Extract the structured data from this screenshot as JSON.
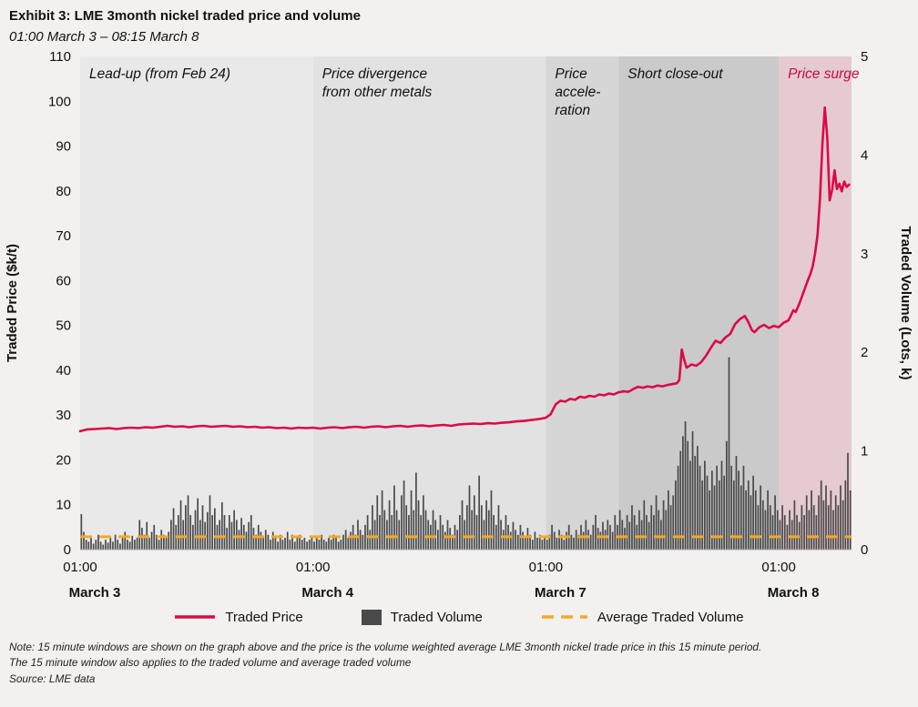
{
  "page": {
    "title": "Exhibit 3: LME 3month nickel traded price and volume",
    "subtitle": "01:00 March 3 – 08:15 March 8"
  },
  "notes": {
    "line1": "Note: 15 minute windows are shown on the graph above and the price is the volume weighted average LME 3month nickel trade price in this 15 minute period.",
    "line2": "The 15 minute window also applies to the traded volume and average traded volume",
    "source": "Source: LME data"
  },
  "legend": [
    {
      "label": "Traded Price",
      "type": "line",
      "color": "#db0a47"
    },
    {
      "label": "Traded Volume",
      "type": "box",
      "color": "#4a4a4a"
    },
    {
      "label": "Average Traded Volume",
      "type": "dashed",
      "color": "#f7a823"
    }
  ],
  "chart_data": {
    "type": "combo: line (price, left axis) + bar (volume, right axis) + dashed average line",
    "x_unit": "15-minute trading windows, 01:00 March 3 to 08:15 March 8 (trading days only)",
    "total_windows": 318,
    "x_tick_windows": [
      0,
      96,
      192,
      288
    ],
    "x_tick_time_labels": [
      "01:00",
      "01:00",
      "01:00",
      "01:00"
    ],
    "x_tick_day_labels": [
      "March 3",
      "March 4",
      "March 7",
      "March 8"
    ],
    "left_axis": {
      "label": "Traded Price ($k/t)",
      "min": 0,
      "max": 110,
      "step": 10
    },
    "right_axis": {
      "label": "Traded Volume (Lots, k)",
      "min": 0,
      "max": 5,
      "step": 1
    },
    "bands": [
      {
        "label": "Lead-up (from Feb 24)",
        "start": 0,
        "end": 96,
        "color": "#e9e9e9",
        "label_color": "#111111"
      },
      {
        "label": "Price divergence\nfrom other metals",
        "start": 96,
        "end": 192,
        "color": "#e2e2e2",
        "label_color": "#111111"
      },
      {
        "label": "Price\naccele-\nration",
        "start": 192,
        "end": 222,
        "color": "#d6d6d6",
        "label_color": "#111111"
      },
      {
        "label": "Short close-out",
        "start": 222,
        "end": 288,
        "color": "#cacaca",
        "label_color": "#111111"
      },
      {
        "label": "Price surge",
        "start": 288,
        "end": 318,
        "color": "#e5cad0",
        "label_color": "#c40b3e"
      }
    ],
    "price_series": {
      "name": "Traded Price",
      "color": "#db0a47",
      "points": [
        [
          0,
          26.4
        ],
        [
          3,
          26.8
        ],
        [
          6,
          26.9
        ],
        [
          9,
          27.0
        ],
        [
          12,
          27.1
        ],
        [
          15,
          26.9
        ],
        [
          18,
          27.1
        ],
        [
          21,
          27.2
        ],
        [
          24,
          27.1
        ],
        [
          27,
          27.3
        ],
        [
          30,
          27.2
        ],
        [
          33,
          27.4
        ],
        [
          36,
          27.6
        ],
        [
          39,
          27.4
        ],
        [
          42,
          27.5
        ],
        [
          45,
          27.3
        ],
        [
          48,
          27.5
        ],
        [
          51,
          27.6
        ],
        [
          54,
          27.4
        ],
        [
          57,
          27.5
        ],
        [
          60,
          27.6
        ],
        [
          63,
          27.4
        ],
        [
          66,
          27.5
        ],
        [
          69,
          27.3
        ],
        [
          72,
          27.4
        ],
        [
          75,
          27.2
        ],
        [
          78,
          27.3
        ],
        [
          81,
          27.1
        ],
        [
          84,
          27.2
        ],
        [
          87,
          27.0
        ],
        [
          90,
          27.2
        ],
        [
          93,
          27.1
        ],
        [
          96,
          27.2
        ],
        [
          99,
          27.0
        ],
        [
          102,
          27.2
        ],
        [
          105,
          27.3
        ],
        [
          108,
          27.1
        ],
        [
          111,
          27.3
        ],
        [
          114,
          27.4
        ],
        [
          117,
          27.2
        ],
        [
          120,
          27.4
        ],
        [
          123,
          27.5
        ],
        [
          126,
          27.3
        ],
        [
          129,
          27.5
        ],
        [
          132,
          27.6
        ],
        [
          135,
          27.4
        ],
        [
          138,
          27.6
        ],
        [
          141,
          27.7
        ],
        [
          144,
          27.5
        ],
        [
          147,
          27.7
        ],
        [
          150,
          27.8
        ],
        [
          153,
          27.6
        ],
        [
          156,
          27.9
        ],
        [
          159,
          28.0
        ],
        [
          162,
          28.1
        ],
        [
          165,
          28.0
        ],
        [
          168,
          28.2
        ],
        [
          171,
          28.1
        ],
        [
          174,
          28.3
        ],
        [
          177,
          28.4
        ],
        [
          180,
          28.6
        ],
        [
          183,
          28.7
        ],
        [
          186,
          28.9
        ],
        [
          189,
          29.1
        ],
        [
          192,
          29.4
        ],
        [
          194,
          30.2
        ],
        [
          196,
          32.4
        ],
        [
          198,
          33.2
        ],
        [
          200,
          33.0
        ],
        [
          202,
          33.6
        ],
        [
          204,
          33.4
        ],
        [
          206,
          34.1
        ],
        [
          208,
          33.9
        ],
        [
          210,
          34.3
        ],
        [
          212,
          34.1
        ],
        [
          214,
          34.6
        ],
        [
          216,
          34.4
        ],
        [
          218,
          34.8
        ],
        [
          220,
          34.6
        ],
        [
          222,
          35.1
        ],
        [
          224,
          35.3
        ],
        [
          226,
          35.2
        ],
        [
          228,
          35.8
        ],
        [
          230,
          36.3
        ],
        [
          232,
          36.1
        ],
        [
          234,
          36.4
        ],
        [
          236,
          36.2
        ],
        [
          238,
          36.6
        ],
        [
          240,
          36.4
        ],
        [
          242,
          36.7
        ],
        [
          244,
          36.9
        ],
        [
          246,
          37.1
        ],
        [
          247,
          37.8
        ],
        [
          248,
          44.6
        ],
        [
          249,
          42.4
        ],
        [
          250,
          40.6
        ],
        [
          251,
          40.9
        ],
        [
          252,
          41.3
        ],
        [
          254,
          41.0
        ],
        [
          256,
          41.8
        ],
        [
          258,
          43.2
        ],
        [
          260,
          45.0
        ],
        [
          262,
          46.6
        ],
        [
          264,
          46.1
        ],
        [
          266,
          47.3
        ],
        [
          268,
          48.1
        ],
        [
          270,
          50.3
        ],
        [
          272,
          51.4
        ],
        [
          274,
          52.1
        ],
        [
          275,
          51.2
        ],
        [
          276,
          50.1
        ],
        [
          277,
          48.9
        ],
        [
          278,
          48.5
        ],
        [
          280,
          49.6
        ],
        [
          282,
          50.1
        ],
        [
          284,
          49.4
        ],
        [
          286,
          49.9
        ],
        [
          288,
          49.6
        ],
        [
          290,
          50.6
        ],
        [
          292,
          51.1
        ],
        [
          293,
          52.2
        ],
        [
          294,
          53.4
        ],
        [
          295,
          53.0
        ],
        [
          296,
          54.2
        ],
        [
          297,
          55.6
        ],
        [
          298,
          57.1
        ],
        [
          299,
          58.6
        ],
        [
          300,
          60.1
        ],
        [
          301,
          61.4
        ],
        [
          302,
          63.2
        ],
        [
          303,
          66.1
        ],
        [
          304,
          70.2
        ],
        [
          305,
          78.4
        ],
        [
          306,
          90.3
        ],
        [
          307,
          98.6
        ],
        [
          308,
          91.8
        ],
        [
          309,
          77.9
        ],
        [
          310,
          80.2
        ],
        [
          311,
          84.6
        ],
        [
          312,
          80.4
        ],
        [
          313,
          81.6
        ],
        [
          314,
          79.9
        ],
        [
          315,
          82.1
        ],
        [
          316,
          80.9
        ],
        [
          317,
          81.4
        ]
      ]
    },
    "volume_series": {
      "name": "Traded Volume",
      "color": "#4a4a4a",
      "start_window": 0,
      "values": [
        0.36,
        0.18,
        0.1,
        0.08,
        0.12,
        0.06,
        0.1,
        0.15,
        0.08,
        0.05,
        0.1,
        0.07,
        0.12,
        0.08,
        0.15,
        0.1,
        0.06,
        0.12,
        0.18,
        0.1,
        0.08,
        0.14,
        0.1,
        0.12,
        0.3,
        0.22,
        0.15,
        0.28,
        0.12,
        0.18,
        0.25,
        0.15,
        0.1,
        0.2,
        0.15,
        0.12,
        0.18,
        0.3,
        0.42,
        0.25,
        0.35,
        0.5,
        0.3,
        0.45,
        0.55,
        0.35,
        0.25,
        0.4,
        0.52,
        0.3,
        0.45,
        0.28,
        0.38,
        0.55,
        0.35,
        0.42,
        0.25,
        0.3,
        0.48,
        0.35,
        0.22,
        0.35,
        0.28,
        0.4,
        0.3,
        0.2,
        0.32,
        0.25,
        0.18,
        0.28,
        0.35,
        0.22,
        0.15,
        0.25,
        0.18,
        0.12,
        0.2,
        0.15,
        0.1,
        0.18,
        0.12,
        0.08,
        0.15,
        0.1,
        0.12,
        0.18,
        0.1,
        0.15,
        0.08,
        0.12,
        0.15,
        0.1,
        0.12,
        0.08,
        0.1,
        0.12,
        0.08,
        0.12,
        0.1,
        0.15,
        0.1,
        0.08,
        0.12,
        0.1,
        0.15,
        0.12,
        0.08,
        0.1,
        0.15,
        0.2,
        0.12,
        0.18,
        0.25,
        0.15,
        0.3,
        0.2,
        0.15,
        0.25,
        0.35,
        0.2,
        0.45,
        0.3,
        0.55,
        0.35,
        0.6,
        0.4,
        0.3,
        0.5,
        0.35,
        0.65,
        0.4,
        0.3,
        0.55,
        0.7,
        0.45,
        0.35,
        0.6,
        0.4,
        0.78,
        0.5,
        0.35,
        0.55,
        0.4,
        0.3,
        0.25,
        0.4,
        0.3,
        0.2,
        0.35,
        0.25,
        0.18,
        0.3,
        0.22,
        0.15,
        0.25,
        0.2,
        0.35,
        0.5,
        0.3,
        0.45,
        0.65,
        0.4,
        0.55,
        0.35,
        0.75,
        0.45,
        0.3,
        0.5,
        0.4,
        0.6,
        0.35,
        0.25,
        0.45,
        0.3,
        0.2,
        0.35,
        0.25,
        0.18,
        0.28,
        0.2,
        0.15,
        0.25,
        0.18,
        0.12,
        0.22,
        0.15,
        0.1,
        0.18,
        0.12,
        0.15,
        0.1,
        0.12,
        0.1,
        0.15,
        0.25,
        0.18,
        0.12,
        0.2,
        0.15,
        0.1,
        0.18,
        0.25,
        0.15,
        0.12,
        0.2,
        0.15,
        0.25,
        0.18,
        0.3,
        0.2,
        0.15,
        0.25,
        0.35,
        0.22,
        0.18,
        0.28,
        0.2,
        0.3,
        0.25,
        0.18,
        0.35,
        0.25,
        0.4,
        0.3,
        0.22,
        0.35,
        0.28,
        0.45,
        0.35,
        0.25,
        0.4,
        0.3,
        0.5,
        0.35,
        0.28,
        0.45,
        0.35,
        0.55,
        0.4,
        0.3,
        0.5,
        0.4,
        0.6,
        0.45,
        0.55,
        0.7,
        0.85,
        1.0,
        1.15,
        1.3,
        1.1,
        0.9,
        1.2,
        0.95,
        1.05,
        0.85,
        0.7,
        0.9,
        0.75,
        0.6,
        0.8,
        0.65,
        0.85,
        0.7,
        0.9,
        0.75,
        1.1,
        1.95,
        0.85,
        0.7,
        0.95,
        0.8,
        0.65,
        0.85,
        0.6,
        0.7,
        0.55,
        0.75,
        0.6,
        0.45,
        0.65,
        0.5,
        0.4,
        0.6,
        0.45,
        0.35,
        0.55,
        0.4,
        0.3,
        0.45,
        0.35,
        0.25,
        0.4,
        0.3,
        0.5,
        0.35,
        0.28,
        0.45,
        0.35,
        0.55,
        0.4,
        0.6,
        0.45,
        0.35,
        0.55,
        0.7,
        0.5,
        0.65,
        0.45,
        0.6,
        0.4,
        0.55,
        0.45,
        0.65,
        0.5,
        0.7,
        0.98,
        0.6
      ]
    },
    "average_volume": {
      "name": "Average Traded Volume",
      "color": "#f7a823",
      "value": 0.13
    }
  }
}
